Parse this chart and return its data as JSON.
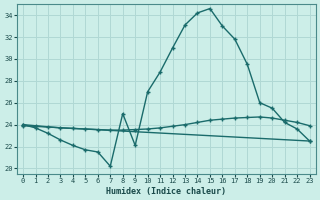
{
  "xlabel": "Humidex (Indice chaleur)",
  "bg_color": "#cceee8",
  "grid_color": "#b0d8d4",
  "line_color": "#1a6b6b",
  "xlim": [
    -0.5,
    23.5
  ],
  "ylim": [
    19.5,
    35.0
  ],
  "yticks": [
    20,
    22,
    24,
    26,
    28,
    30,
    32,
    34
  ],
  "xticks": [
    0,
    1,
    2,
    3,
    4,
    5,
    6,
    7,
    8,
    9,
    10,
    11,
    12,
    13,
    14,
    15,
    16,
    17,
    18,
    19,
    20,
    21,
    22,
    23
  ],
  "series_main": {
    "x": [
      0,
      1,
      2,
      3,
      4,
      5,
      6,
      7,
      8,
      9,
      10,
      11,
      12,
      13,
      14,
      15,
      16,
      17,
      18,
      19,
      20,
      21,
      22,
      23
    ],
    "y": [
      24.0,
      23.7,
      23.2,
      22.6,
      22.1,
      21.7,
      21.5,
      20.2,
      25.0,
      22.1,
      27.0,
      28.8,
      31.0,
      33.1,
      34.2,
      34.6,
      33.0,
      31.8,
      29.5,
      26.0,
      25.5,
      24.2,
      23.6,
      22.5
    ]
  },
  "series_mean": {
    "x": [
      0,
      1,
      2,
      3,
      4,
      5,
      6,
      7,
      8,
      9,
      10,
      11,
      12,
      13,
      14,
      15,
      16,
      17,
      18,
      19,
      20,
      21,
      22,
      23
    ],
    "y": [
      24.0,
      23.9,
      23.8,
      23.7,
      23.65,
      23.6,
      23.55,
      23.5,
      23.5,
      23.55,
      23.6,
      23.7,
      23.85,
      24.0,
      24.2,
      24.4,
      24.5,
      24.6,
      24.65,
      24.7,
      24.6,
      24.4,
      24.2,
      23.9
    ]
  },
  "series_straight": {
    "x": [
      0,
      23
    ],
    "y": [
      23.9,
      22.5
    ]
  },
  "marker": "+",
  "markersize": 3.5,
  "linewidth": 1.0
}
